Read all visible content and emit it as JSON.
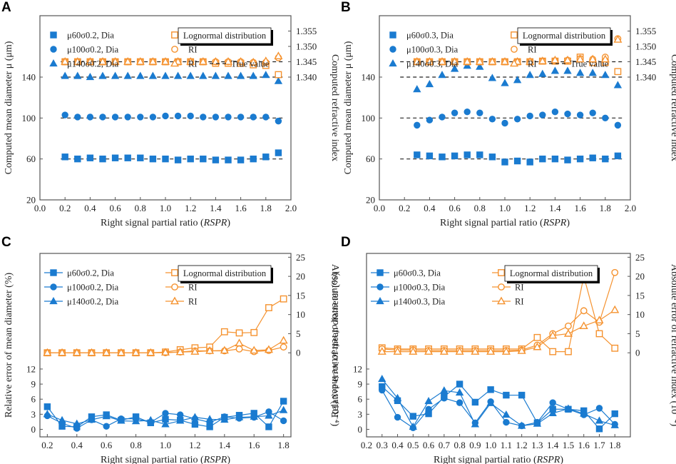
{
  "colors": {
    "dia": "#1a7bd0",
    "ri": "#f5922f",
    "axis": "#555555",
    "truth": "#222222"
  },
  "chart_data": [
    {
      "panel": "A",
      "type": "scatter",
      "xlabel": "Right signal partial ratio (RSPR)",
      "ylabel": "Computed mean diameter μ (μm)",
      "y2label": "Computed refractive index",
      "xlim": [
        0,
        2.0
      ],
      "xticks": [
        "0.0",
        "0.2",
        "0.4",
        "0.6",
        "0.8",
        "1.0",
        "1.2",
        "1.4",
        "1.6",
        "1.8",
        "2.0"
      ],
      "ylim": [
        20,
        200
      ],
      "yticks": [
        "20",
        "60",
        "100",
        "140"
      ],
      "y2lim": [
        1.3,
        1.36
      ],
      "y2ticks": [
        "1.340",
        "1.345",
        "1.350",
        "1.355"
      ],
      "box_text": "Lognormal distribution",
      "truth_label": "True value",
      "truth_lines": [
        60,
        100,
        140
      ],
      "truth_ri": 1.345,
      "x": [
        0.2,
        0.3,
        0.4,
        0.5,
        0.6,
        0.7,
        0.8,
        0.9,
        1.0,
        1.1,
        1.2,
        1.3,
        1.4,
        1.5,
        1.6,
        1.7,
        1.8,
        1.9
      ],
      "series": [
        {
          "name": "μ60σ0.2,  Dia",
          "axis": "y",
          "marker": "square",
          "filled": true,
          "values": [
            62,
            60,
            61,
            60,
            61,
            61,
            61,
            60,
            60,
            59,
            60,
            60,
            59,
            59,
            59,
            60,
            62,
            66
          ]
        },
        {
          "name": "μ100σ0.2, Dia",
          "axis": "y",
          "marker": "circle",
          "filled": true,
          "values": [
            103,
            101,
            101,
            101,
            101,
            101,
            101,
            101,
            102,
            102,
            102,
            101,
            101,
            101,
            101,
            101,
            101,
            97
          ]
        },
        {
          "name": "μ140σ0.2, Dia",
          "axis": "y",
          "marker": "triangle",
          "filled": true,
          "values": [
            141,
            141,
            140,
            141,
            141,
            141,
            141,
            141,
            141,
            141,
            141,
            141,
            141,
            141,
            141,
            141,
            142,
            136
          ]
        },
        {
          "name": "RI",
          "axis": "y2",
          "marker": "square",
          "filled": false,
          "values": [
            1.345,
            1.345,
            1.345,
            1.345,
            1.345,
            1.345,
            1.345,
            1.345,
            1.345,
            1.345,
            1.345,
            1.345,
            1.3445,
            1.3445,
            1.3445,
            1.344,
            1.3438,
            1.3408
          ]
        },
        {
          "name": "RI",
          "axis": "y2",
          "marker": "circle",
          "filled": false,
          "values": [
            1.345,
            1.345,
            1.345,
            1.345,
            1.345,
            1.345,
            1.345,
            1.345,
            1.345,
            1.345,
            1.345,
            1.345,
            1.345,
            1.345,
            1.345,
            1.3448,
            1.3448,
            1.3463
          ]
        },
        {
          "name": "RI",
          "axis": "y2",
          "marker": "triangle",
          "filled": false,
          "values": [
            1.345,
            1.345,
            1.345,
            1.345,
            1.345,
            1.345,
            1.345,
            1.345,
            1.345,
            1.345,
            1.345,
            1.345,
            1.345,
            1.345,
            1.345,
            1.3448,
            1.3452,
            1.3468
          ]
        }
      ]
    },
    {
      "panel": "B",
      "type": "scatter",
      "xlabel": "Right signal partial ratio (RSPR)",
      "ylabel": "Computed mean diameter μ (μm)",
      "y2label": "Computed refractive index",
      "xlim": [
        0,
        2.0
      ],
      "xticks": [
        "0.0",
        "0.2",
        "0.4",
        "0.6",
        "0.8",
        "1.0",
        "1.2",
        "1.4",
        "1.6",
        "1.8",
        "2.0"
      ],
      "ylim": [
        20,
        200
      ],
      "yticks": [
        "20",
        "60",
        "100",
        "140"
      ],
      "y2lim": [
        1.3,
        1.36
      ],
      "y2ticks": [
        "1.340",
        "1.345",
        "1.350",
        "1.355"
      ],
      "box_text": "Lognormal distribution",
      "truth_label": "True value",
      "truth_lines": [
        60,
        100,
        140
      ],
      "truth_ri": 1.345,
      "x": [
        0.3,
        0.4,
        0.5,
        0.6,
        0.7,
        0.8,
        0.9,
        1.0,
        1.1,
        1.2,
        1.3,
        1.4,
        1.5,
        1.6,
        1.7,
        1.8,
        1.9
      ],
      "series": [
        {
          "name": "μ60σ0.3,   Dia",
          "axis": "y",
          "marker": "square",
          "filled": true,
          "values": [
            64,
            63,
            62,
            63,
            64,
            64,
            62,
            57,
            58,
            57,
            60,
            60,
            59,
            60,
            61,
            60,
            63
          ]
        },
        {
          "name": "μ100σ0.3, Dia",
          "axis": "y",
          "marker": "circle",
          "filled": true,
          "values": [
            93,
            98,
            101,
            105,
            106,
            105,
            99,
            95,
            99,
            102,
            103,
            106,
            104,
            103,
            105,
            100,
            93
          ]
        },
        {
          "name": "μ140σ0.3, Dia",
          "axis": "y",
          "marker": "triangle",
          "filled": true,
          "values": [
            128,
            133,
            142,
            148,
            151,
            150,
            139,
            134,
            137,
            142,
            143,
            146,
            146,
            144,
            144,
            142,
            132
          ]
        },
        {
          "name": "RI",
          "axis": "y2",
          "marker": "square",
          "filled": false,
          "values": [
            1.345,
            1.345,
            1.345,
            1.345,
            1.345,
            1.345,
            1.345,
            1.345,
            1.345,
            1.345,
            1.3452,
            1.3452,
            1.3452,
            1.3465,
            1.3447,
            1.3448,
            1.3418
          ]
        },
        {
          "name": "RI",
          "axis": "y2",
          "marker": "circle",
          "filled": false,
          "values": [
            1.345,
            1.345,
            1.345,
            1.345,
            1.345,
            1.345,
            1.345,
            1.345,
            1.345,
            1.345,
            1.3452,
            1.3453,
            1.3455,
            1.346,
            1.3458,
            1.3465,
            1.3525
          ]
        },
        {
          "name": "RI",
          "axis": "y2",
          "marker": "triangle",
          "filled": false,
          "values": [
            1.345,
            1.345,
            1.345,
            1.345,
            1.345,
            1.345,
            1.345,
            1.345,
            1.345,
            1.345,
            1.3452,
            1.3455,
            1.3455,
            1.3458,
            1.3458,
            1.3458,
            1.3522
          ]
        }
      ]
    },
    {
      "panel": "C",
      "type": "line",
      "xlabel": "Right signal partial ratio (RSPR)",
      "ylabel": "Relative error of mean diameter (%)",
      "y2label": "Absolute error of refractive index (10⁻⁴)",
      "xlim": [
        0.15,
        1.85
      ],
      "xticks": [
        "0.2",
        "0.4",
        "0.6",
        "0.8",
        "1.0",
        "1.2",
        "1.4",
        "1.6",
        "1.8"
      ],
      "ylim": [
        -1.5,
        35
      ],
      "yticks": [
        "0",
        "3",
        "6",
        "9",
        "12"
      ],
      "y2lim": [
        -22,
        26
      ],
      "y2ticks": [
        "0",
        "5",
        "10",
        "15",
        "20",
        "25"
      ],
      "box_text": "Lognormal distribution",
      "x": [
        0.2,
        0.3,
        0.4,
        0.5,
        0.6,
        0.7,
        0.8,
        0.9,
        1.0,
        1.1,
        1.2,
        1.3,
        1.4,
        1.5,
        1.6,
        1.7,
        1.8
      ],
      "series": [
        {
          "name": "μ60σ0.2, Dia",
          "axis": "y",
          "marker": "square",
          "filled": true,
          "values": [
            4.5,
            0.6,
            0.5,
            2.5,
            2.9,
            1.8,
            2.5,
            1.3,
            2.0,
            1.8,
            1.0,
            0.5,
            2.4,
            2.8,
            3.2,
            0.5,
            5.6
          ]
        },
        {
          "name": "μ100σ0.2, Dia",
          "axis": "y",
          "marker": "circle",
          "filled": true,
          "values": [
            2.7,
            1.2,
            0.2,
            1.9,
            0.6,
            2.1,
            2.1,
            1.4,
            3.2,
            2.9,
            2.1,
            1.4,
            2.5,
            2.2,
            2.4,
            3.5,
            1.7
          ]
        },
        {
          "name": "μ140σ0.2, Dia",
          "axis": "y",
          "marker": "triangle",
          "filled": true,
          "values": [
            3.0,
            1.8,
            1.1,
            1.9,
            2.6,
            1.7,
            1.6,
            1.8,
            1.0,
            1.7,
            2.4,
            2.0,
            1.9,
            2.4,
            2.5,
            2.7,
            3.8
          ]
        },
        {
          "name": "RI",
          "axis": "y2",
          "marker": "square",
          "filled": false,
          "values": [
            0,
            0,
            0,
            0,
            0,
            0,
            0,
            0,
            0.2,
            0.8,
            1.3,
            1.5,
            5.5,
            5.2,
            5.3,
            11.8,
            14.1
          ]
        },
        {
          "name": "RI",
          "axis": "y2",
          "marker": "circle",
          "filled": false,
          "values": [
            0,
            0,
            0,
            0,
            0,
            0,
            0,
            0,
            0,
            0.2,
            0.5,
            0.5,
            0.5,
            1.0,
            0.3,
            0.6,
            1.5
          ]
        },
        {
          "name": "RI",
          "axis": "y2",
          "marker": "triangle",
          "filled": false,
          "values": [
            0,
            0,
            0,
            0,
            0,
            0,
            0,
            0,
            0.1,
            0.2,
            0.3,
            0.5,
            0.6,
            2.5,
            0.6,
            0.8,
            3.2
          ]
        }
      ]
    },
    {
      "panel": "D",
      "type": "line",
      "xlabel": "Right signal partial ratio (RSPR)",
      "ylabel": "Relative error of mean diameter (%)",
      "y2label": "Absolute error of refractive index (10⁻⁴)",
      "xlim": [
        0.2,
        1.9
      ],
      "xticks": [
        "0.2",
        "0.3",
        "0.4",
        "0.5",
        "0.6",
        "0.7",
        "0.8",
        "0.9",
        "1.0",
        "1.1",
        "1.2",
        "1.3",
        "1.4",
        "1.5",
        "1.6",
        "1.7",
        "1.8"
      ],
      "ylim": [
        -1.5,
        35
      ],
      "yticks": [
        "0",
        "3",
        "6",
        "9",
        "12"
      ],
      "y2lim": [
        -22,
        26
      ],
      "y2ticks": [
        "0",
        "5",
        "10",
        "15",
        "20",
        "25"
      ],
      "box_text": "Lognormal distribution",
      "x": [
        0.3,
        0.4,
        0.5,
        0.6,
        0.7,
        0.8,
        0.9,
        1.0,
        1.1,
        1.2,
        1.3,
        1.4,
        1.5,
        1.6,
        1.7,
        1.8
      ],
      "series": [
        {
          "name": "μ60σ0.3, Dia",
          "axis": "y",
          "marker": "square",
          "filled": true,
          "values": [
            8.5,
            5.7,
            2.6,
            3.1,
            6.5,
            9.0,
            5.4,
            7.9,
            6.8,
            6.8,
            1.3,
            4.0,
            4.0,
            3.7,
            0.1,
            3.1
          ]
        },
        {
          "name": "μ100σ0.3, Dia",
          "axis": "y",
          "marker": "circle",
          "filled": true,
          "values": [
            7.8,
            2.4,
            0.3,
            4.0,
            6.2,
            5.3,
            1.3,
            5.5,
            1.4,
            0.7,
            1.4,
            5.3,
            4.0,
            2.9,
            4.2,
            1.0
          ]
        },
        {
          "name": "μ140σ0.3, Dia",
          "axis": "y",
          "marker": "triangle",
          "filled": true,
          "values": [
            10.0,
            6.2,
            0.5,
            5.6,
            7.7,
            7.3,
            1.0,
            5.2,
            2.9,
            0.7,
            1.1,
            3.2,
            4.1,
            3.1,
            1.7,
            0.8
          ]
        },
        {
          "name": "RI",
          "axis": "y2",
          "marker": "square",
          "filled": false,
          "values": [
            1.3,
            1.0,
            1.0,
            1.0,
            1.0,
            1.0,
            1.0,
            1.0,
            1.0,
            1.0,
            4.0,
            0.3,
            0.3,
            20.0,
            5.0,
            1.2
          ]
        },
        {
          "name": "RI",
          "axis": "y2",
          "marker": "circle",
          "filled": false,
          "values": [
            1.0,
            0.7,
            0.7,
            0.6,
            0.6,
            0.6,
            0.6,
            0.6,
            0.6,
            0.7,
            2.0,
            5.0,
            7.0,
            11.0,
            8.0,
            21.0
          ]
        },
        {
          "name": "RI",
          "axis": "y2",
          "marker": "triangle",
          "filled": false,
          "values": [
            0.3,
            0.3,
            0.3,
            0.3,
            0.3,
            0.3,
            0.3,
            0.3,
            0.3,
            0.5,
            1.5,
            4.5,
            5.0,
            7.0,
            8.5,
            11.2
          ]
        }
      ]
    }
  ]
}
